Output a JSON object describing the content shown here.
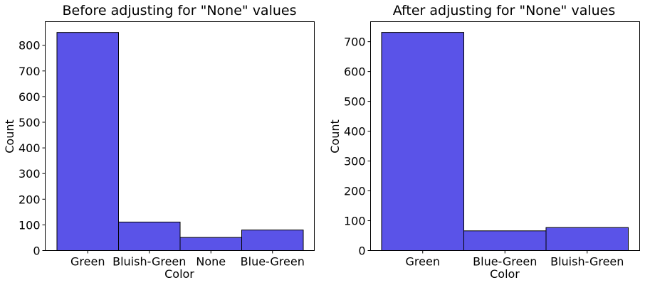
{
  "bar_color": "#5a53e8",
  "chart_data": [
    {
      "type": "bar",
      "title": "Before adjusting for \"None\" values",
      "xlabel": "Color",
      "ylabel": "Count",
      "categories": [
        "Green",
        "Bluish-Green",
        "None",
        "Blue-Green"
      ],
      "values": [
        850,
        111,
        51,
        80
      ],
      "yticks": [
        0,
        100,
        200,
        300,
        400,
        500,
        600,
        700,
        800
      ],
      "ylim": [
        0,
        892
      ],
      "grid": false
    },
    {
      "type": "bar",
      "title": "After adjusting for \"None\" values",
      "xlabel": "Color",
      "ylabel": "Count",
      "categories": [
        "Green",
        "Blue-Green",
        "Bluish-Green"
      ],
      "values": [
        731,
        66,
        77
      ],
      "yticks": [
        0,
        100,
        200,
        300,
        400,
        500,
        600,
        700
      ],
      "ylim": [
        0,
        767
      ],
      "grid": false
    }
  ]
}
